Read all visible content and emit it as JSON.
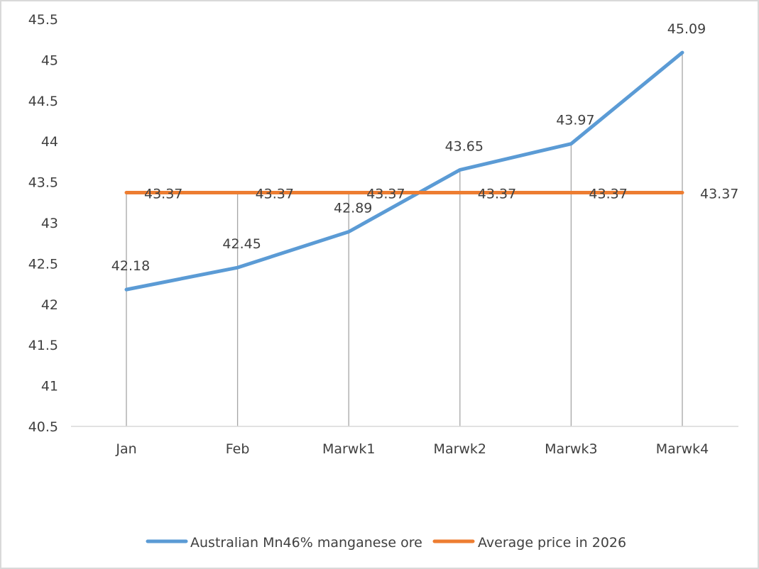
{
  "chart_data": {
    "type": "line",
    "title": "",
    "xlabel": "",
    "ylabel": "",
    "categories": [
      "Jan",
      "Feb",
      "Marwk1",
      "Marwk2",
      "Marwk3",
      "Marwk4"
    ],
    "ylim": [
      40.5,
      45.5
    ],
    "yticks": [
      "40.5",
      "41",
      "41.5",
      "42",
      "42.5",
      "43",
      "43.5",
      "44",
      "44.5",
      "45",
      "45.5"
    ],
    "grid": false,
    "drop_lines": true,
    "legend_position": "bottom",
    "series": [
      {
        "name": "Australian Mn46% manganese ore",
        "color": "#5B9BD5",
        "values": [
          42.18,
          42.45,
          42.89,
          43.65,
          43.97,
          45.09
        ],
        "labels": [
          "42.18",
          "42.45",
          "42.89",
          "43.65",
          "43.97",
          "45.09"
        ]
      },
      {
        "name": "Average price in 2026",
        "color": "#ED7D31",
        "values": [
          43.37,
          43.37,
          43.37,
          43.37,
          43.37,
          43.37
        ],
        "labels": [
          "43.37",
          "43.37",
          "43.37",
          "43.37",
          "43.37",
          "43.37"
        ]
      }
    ]
  }
}
